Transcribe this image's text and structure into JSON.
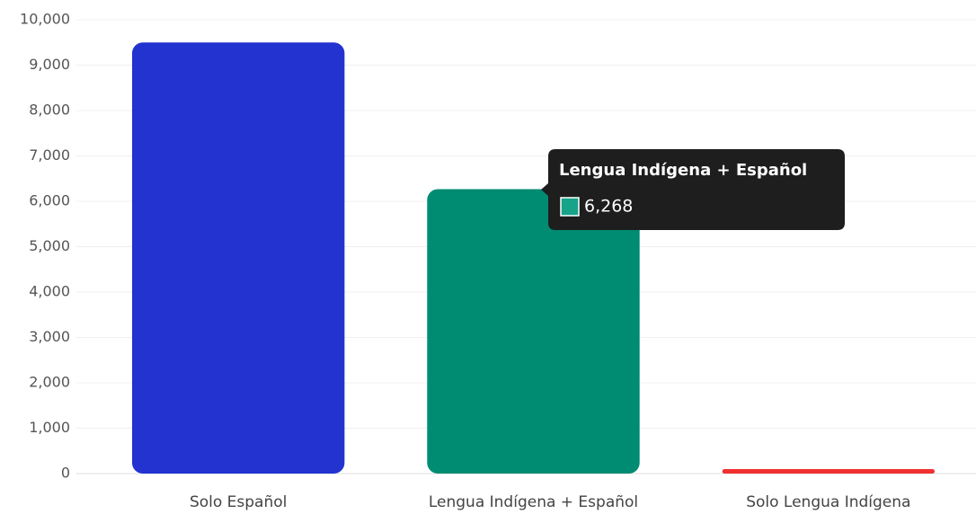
{
  "chart_data": {
    "type": "bar",
    "categories": [
      "Solo Español",
      "Lengua Indígena + Español",
      "Solo Lengua Indígena"
    ],
    "values": [
      9500,
      6268,
      100
    ],
    "colors": [
      "#2233d0",
      "#008c72",
      "#f03030"
    ],
    "ylim": [
      0,
      10000
    ],
    "yticks": [
      0,
      {
        "value": 1000,
        "label": "1,000"
      },
      {
        "value": 2000,
        "label": "2,000"
      },
      {
        "value": 3000,
        "label": "3,000"
      },
      {
        "value": 4000,
        "label": "4,000"
      },
      {
        "value": 5000,
        "label": "5,000"
      },
      {
        "value": 6000,
        "label": "6,000"
      },
      {
        "value": 7000,
        "label": "7,000"
      },
      {
        "value": 8000,
        "label": "8,000"
      },
      {
        "value": 9000,
        "label": "9,000"
      },
      {
        "value": 10000,
        "label": "10,000"
      }
    ],
    "grid": true,
    "tooltip": {
      "title": "Lengua Indígena + Español",
      "value_label": "6,268",
      "color": "#16a38a"
    }
  }
}
